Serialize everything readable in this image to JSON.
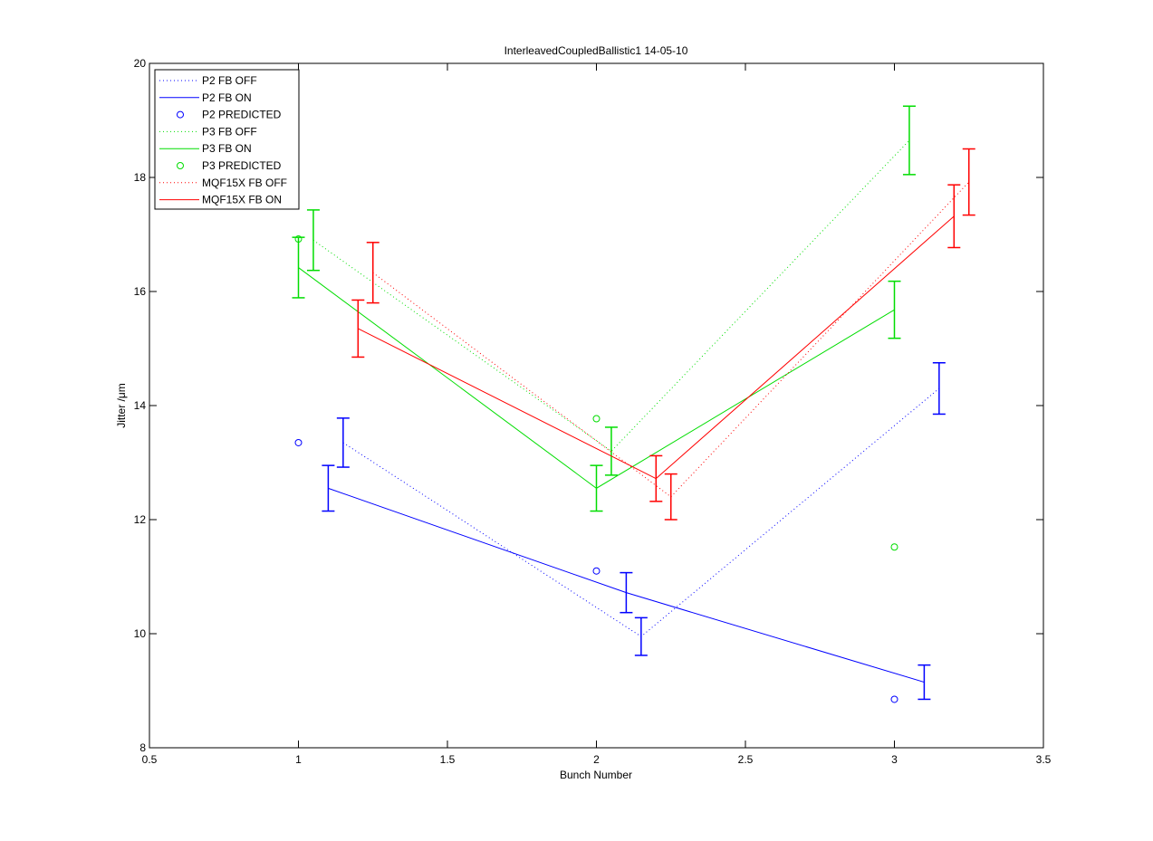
{
  "chart_data": {
    "type": "line",
    "title": "InterleavedCoupledBallistic1 14-05-10",
    "xlabel": "Bunch Number",
    "ylabel": "Jitter /μm",
    "xlim": [
      0.5,
      3.5
    ],
    "ylim": [
      8,
      20
    ],
    "x_ticks": [
      "0.5",
      "1",
      "1.5",
      "2",
      "2.5",
      "3",
      "3.5"
    ],
    "y_ticks": [
      "8",
      "10",
      "12",
      "14",
      "16",
      "18",
      "20"
    ],
    "grid": false,
    "legend_position": "top-left",
    "series": [
      {
        "name": "P2 FB OFF",
        "style": "dotted",
        "color": "#0000ff",
        "x": [
          1.15,
          2.15,
          3.15
        ],
        "y": [
          13.35,
          9.95,
          14.3
        ],
        "err": [
          0.43,
          0.33,
          0.45
        ]
      },
      {
        "name": "P2 FB ON",
        "style": "solid",
        "color": "#0000ff",
        "x": [
          1.1,
          2.1,
          3.1
        ],
        "y": [
          12.55,
          10.72,
          9.15
        ],
        "err": [
          0.4,
          0.35,
          0.3
        ]
      },
      {
        "name": "P2 PREDICTED",
        "style": "marker",
        "color": "#0000ff",
        "x": [
          1,
          2,
          3
        ],
        "y": [
          13.35,
          11.1,
          8.85
        ]
      },
      {
        "name": "P3 FB OFF",
        "style": "dotted",
        "color": "#00dd00",
        "x": [
          1.05,
          2.05,
          3.05
        ],
        "y": [
          16.9,
          13.2,
          18.65
        ],
        "err": [
          0.53,
          0.42,
          0.6
        ]
      },
      {
        "name": "P3 FB ON",
        "style": "solid",
        "color": "#00dd00",
        "x": [
          1,
          2,
          3
        ],
        "y": [
          16.42,
          12.55,
          15.68
        ],
        "err": [
          0.53,
          0.4,
          0.5
        ]
      },
      {
        "name": "P3 PREDICTED",
        "style": "marker",
        "color": "#00dd00",
        "x": [
          1,
          2,
          3
        ],
        "y": [
          16.92,
          13.77,
          11.52
        ]
      },
      {
        "name": "MQF15X FB OFF",
        "style": "dotted",
        "color": "#ff0000",
        "x": [
          1.25,
          2.25,
          3.25
        ],
        "y": [
          16.33,
          12.4,
          17.92
        ],
        "err": [
          0.53,
          0.4,
          0.58
        ]
      },
      {
        "name": "MQF15X FB ON",
        "style": "solid",
        "color": "#ff0000",
        "x": [
          1.2,
          2.2,
          3.2
        ],
        "y": [
          15.35,
          12.72,
          17.32
        ],
        "err": [
          0.5,
          0.4,
          0.55
        ]
      }
    ]
  }
}
